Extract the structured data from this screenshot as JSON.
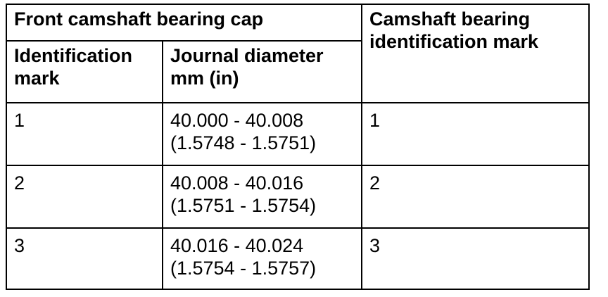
{
  "table": {
    "group_header": "Front camshaft bearing cap",
    "right_header": "Camshaft bearing\nidentification mark",
    "columns": [
      "Identification\nmark",
      "Journal diameter\nmm (in)"
    ],
    "rows": [
      {
        "id_mark": "1",
        "journal_diameter": "40.000 - 40.008\n(1.5748 - 1.5751)",
        "bearing_mark": "1"
      },
      {
        "id_mark": "2",
        "journal_diameter": "40.008 - 40.016\n(1.5751 - 1.5754)",
        "bearing_mark": "2"
      },
      {
        "id_mark": "3",
        "journal_diameter": "40.016 - 40.024\n(1.5754 - 1.5757)",
        "bearing_mark": "3"
      }
    ]
  }
}
